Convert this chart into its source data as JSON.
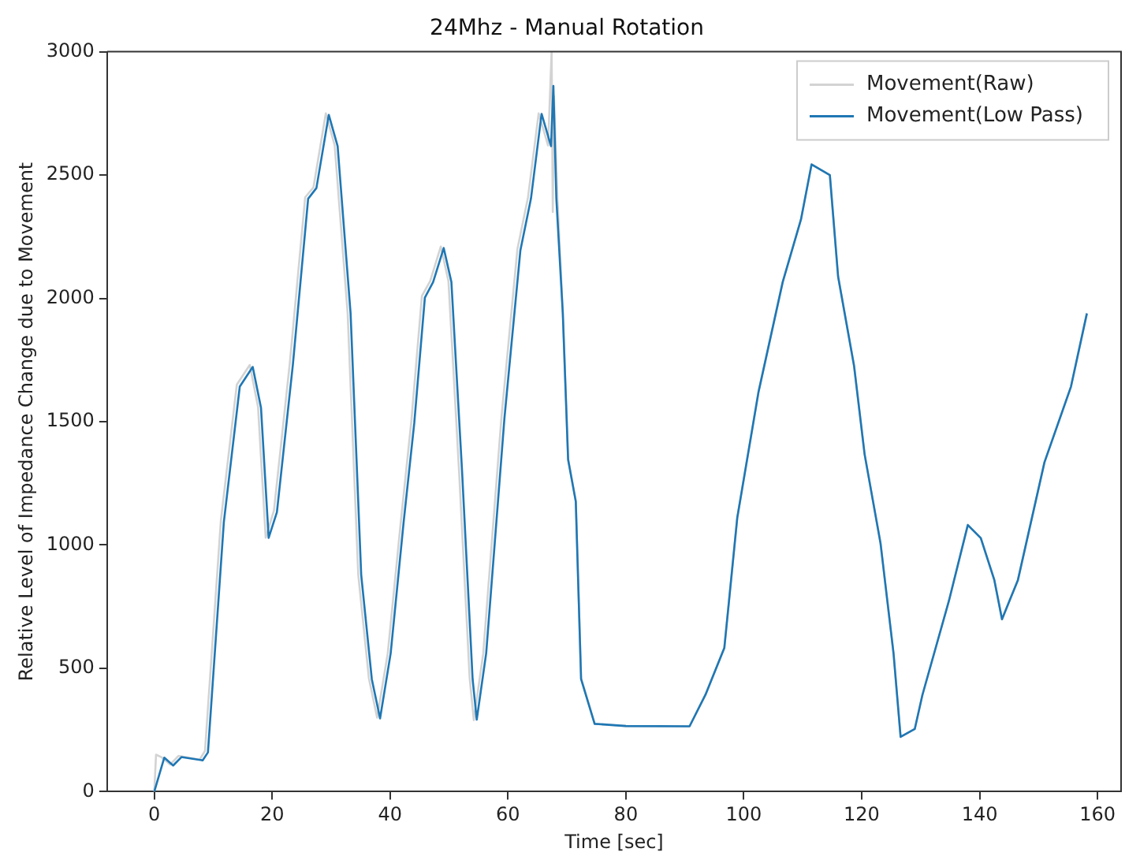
{
  "chart_data": {
    "type": "line",
    "title": "24Mhz - Manual Rotation",
    "xlabel": "Time [sec]",
    "ylabel": "Relative Level of Impedance Change due to Movement",
    "xlim": [
      -8,
      164
    ],
    "xticks": [
      0,
      20,
      40,
      60,
      80,
      100,
      120,
      140,
      160
    ],
    "ylim": [
      0,
      3000
    ],
    "yticks": [
      0,
      500,
      1000,
      1500,
      2000,
      2500,
      3000
    ],
    "grid": false,
    "legend": "top right",
    "marker": "none",
    "line_style": "solid",
    "series": [
      {
        "name": "Movement(Raw)",
        "color": "#d3d3d3",
        "x": [
          0,
          0.3,
          1.2,
          2.7,
          4.1,
          7.7,
          8.6,
          11.3,
          14,
          16.2,
          17.6,
          18.9,
          20.3,
          23,
          25.6,
          27,
          29.1,
          30.6,
          32.8,
          34.6,
          36.4,
          37.8,
          39.6,
          41.8,
          43.6,
          45.4,
          46.8,
          48.6,
          49.9,
          51.7,
          53.5,
          54.2,
          55.8,
          58.9,
          61.6,
          63.4,
          65.2,
          66.8,
          67.4,
          67.6,
          67.8,
          68.4,
          69.3,
          70.2,
          71.5,
          72.4,
          74.7,
          80,
          90.8,
          93.5,
          96.7,
          98.9,
          102.5,
          106.6,
          109.7,
          111.5,
          114.6,
          116,
          118.7,
          120.5,
          123.2,
          125.4,
          126.6,
          129,
          130.3,
          134.8,
          138,
          140.2,
          142.5,
          143.8,
          146.5,
          151,
          155.5,
          158.2
        ],
        "values": [
          0,
          150,
          140,
          110,
          145,
          130,
          165,
          1100,
          1650,
          1730,
          1560,
          1030,
          1140,
          1740,
          2410,
          2450,
          2750,
          2620,
          1940,
          880,
          460,
          300,
          560,
          1090,
          1500,
          2010,
          2070,
          2210,
          2070,
          1300,
          460,
          290,
          560,
          1520,
          2200,
          2410,
          2750,
          2620,
          3000,
          2350,
          2820,
          2400,
          1940,
          1350,
          1180,
          460,
          275,
          266,
          265,
          393,
          583,
          1112,
          1621,
          2066,
          2320,
          2543,
          2500,
          2088,
          1727,
          1367,
          1006,
          561,
          222,
          254,
          392,
          774,
          1081,
          1028,
          858,
          699,
          858,
          1335,
          1642,
          1939
        ]
      },
      {
        "name": "Movement(Low Pass)",
        "color": "#1f77b4",
        "x": [
          0,
          1.7,
          3.2,
          4.6,
          8.2,
          9.1,
          11.8,
          14.5,
          16.7,
          18.1,
          19.4,
          20.8,
          23.5,
          26.1,
          27.5,
          29.6,
          31.1,
          33.3,
          35.1,
          36.9,
          38.3,
          40.1,
          42.3,
          44.1,
          45.9,
          47.3,
          49.1,
          50.4,
          52.2,
          54,
          54.7,
          56.3,
          59.4,
          62.1,
          63.9,
          65.7,
          67.3,
          67.7,
          68.2,
          69.3,
          70.2,
          71.5,
          72.4,
          74.7,
          80,
          90.8,
          93.5,
          96.7,
          98.9,
          102.5,
          106.6,
          109.7,
          111.5,
          114.6,
          116,
          118.7,
          120.5,
          123.2,
          125.4,
          126.6,
          129,
          130.3,
          134.8,
          138,
          140.2,
          142.5,
          143.8,
          146.5,
          151,
          155.5,
          158.2
        ],
        "values": [
          0,
          138,
          106,
          140,
          127,
          159,
          1093,
          1642,
          1722,
          1557,
          1029,
          1133,
          1729,
          2404,
          2447,
          2744,
          2617,
          1939,
          879,
          456,
          297,
          561,
          1093,
          1494,
          2003,
          2066,
          2204,
          2066,
          1303,
          456,
          292,
          561,
          1515,
          2194,
          2405,
          2748,
          2617,
          2861,
          2405,
          1939,
          1346,
          1176,
          456,
          275,
          266,
          265,
          393,
          583,
          1112,
          1621,
          2066,
          2320,
          2543,
          2500,
          2088,
          1727,
          1367,
          1006,
          561,
          222,
          254,
          392,
          774,
          1081,
          1028,
          858,
          699,
          858,
          1335,
          1642,
          1939
        ]
      }
    ]
  }
}
